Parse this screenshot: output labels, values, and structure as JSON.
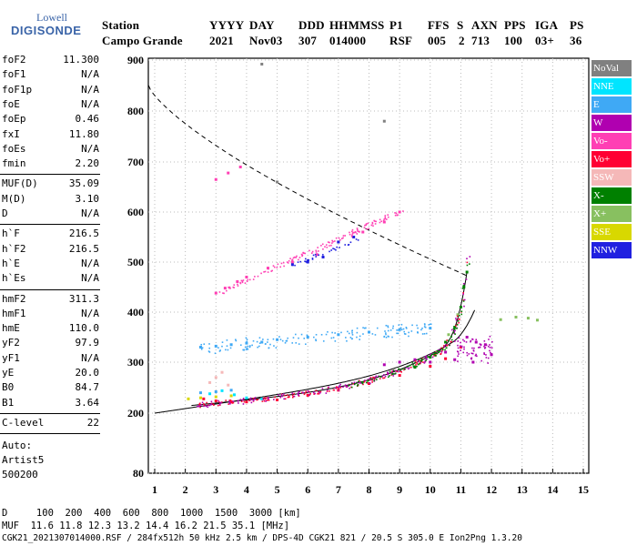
{
  "logo": {
    "line1": "Lowell",
    "line2": "DIGISONDE"
  },
  "header": {
    "row1": [
      "Station",
      "YYYY",
      "DAY",
      "DDD",
      "HHMMSS",
      "P1",
      "FFS",
      "S",
      "AXN",
      "PPS",
      "IGA",
      "PS"
    ],
    "row2": [
      "Campo Grande",
      "2021",
      "Nov03",
      "307",
      "014000",
      "RSF",
      "005",
      "2",
      "713",
      "100",
      "03+",
      "36"
    ]
  },
  "parameters": [
    {
      "name": "foF2",
      "value": "11.300"
    },
    {
      "name": "foF1",
      "value": "N/A"
    },
    {
      "name": "foF1p",
      "value": "N/A"
    },
    {
      "name": "foE",
      "value": "N/A"
    },
    {
      "name": "foEp",
      "value": "0.46"
    },
    {
      "name": "fxI",
      "value": "11.80"
    },
    {
      "name": "foEs",
      "value": "N/A"
    },
    {
      "name": "fmin",
      "value": "2.20"
    },
    {
      "name": "MUF(D)",
      "value": "35.09"
    },
    {
      "name": "M(D)",
      "value": "3.10"
    },
    {
      "name": "D",
      "value": "N/A"
    },
    {
      "name": "h`F",
      "value": "216.5"
    },
    {
      "name": "h`F2",
      "value": "216.5"
    },
    {
      "name": "h`E",
      "value": "N/A"
    },
    {
      "name": "h`Es",
      "value": "N/A"
    },
    {
      "name": "hmF2",
      "value": "311.3"
    },
    {
      "name": "hmF1",
      "value": "N/A"
    },
    {
      "name": "hmE",
      "value": "110.0"
    },
    {
      "name": "yF2",
      "value": "97.9"
    },
    {
      "name": "yF1",
      "value": "N/A"
    },
    {
      "name": "yE",
      "value": "20.0"
    },
    {
      "name": "B0",
      "value": "84.7"
    },
    {
      "name": "B1",
      "value": "3.64"
    },
    {
      "name": "C-level",
      "value": "22"
    }
  ],
  "autoscaler": {
    "line1": "Auto:",
    "line2": "Artist5",
    "line3": "500200"
  },
  "legend": [
    {
      "label": "NoVal",
      "color": "#808080"
    },
    {
      "label": "NNE",
      "color": "#00e5ff"
    },
    {
      "label": "E",
      "color": "#3fa9f5"
    },
    {
      "label": "W",
      "color": "#b000b0"
    },
    {
      "label": "Vo-",
      "color": "#ff3fb4"
    },
    {
      "label": "Vo+",
      "color": "#ff0033"
    },
    {
      "label": "SSW",
      "color": "#f5b8b8"
    },
    {
      "label": "X-",
      "color": "#008000"
    },
    {
      "label": "X+",
      "color": "#88c060"
    },
    {
      "label": "SSE",
      "color": "#d8d800"
    },
    {
      "label": "NNW",
      "color": "#2020e0"
    }
  ],
  "footer": {
    "line1": "D     100  200  400  600  800  1000  1500  3000 [km]",
    "line2": "MUF  11.6 11.8 12.3 13.2 14.4 16.2 21.5 35.1 [MHz]",
    "line3": "CGK21_2021307014000.RSF / 284fx512h 50 kHz 2.5 km / DPS-4D CGK21 821 / 20.5 S 305.0 E Ion2Png 1.3.20"
  },
  "chart_data": {
    "type": "scatter",
    "xlim": [
      0.5,
      15
    ],
    "ylim": [
      80,
      900
    ],
    "x_ticks": [
      1,
      2,
      3,
      4,
      5,
      6,
      7,
      8,
      9,
      10,
      11,
      12,
      13,
      14,
      15
    ],
    "y_ticks": [
      80,
      200,
      300,
      400,
      500,
      600,
      700,
      800,
      900
    ],
    "grid": true,
    "series": [
      {
        "name": "X-",
        "color": "#008000",
        "points": [
          [
            9.5,
            290
          ],
          [
            10.0,
            310
          ],
          [
            10.5,
            340
          ],
          [
            10.8,
            370
          ],
          [
            11.0,
            410
          ],
          [
            11.1,
            450
          ],
          [
            11.2,
            480
          ]
        ]
      },
      {
        "name": "X+",
        "color": "#88c060",
        "points": [
          [
            10.2,
            320
          ],
          [
            10.6,
            355
          ],
          [
            10.9,
            395
          ],
          [
            12.3,
            385
          ],
          [
            12.8,
            390
          ],
          [
            13.2,
            388
          ],
          [
            13.5,
            384
          ]
        ]
      },
      {
        "name": "W",
        "color": "#b000b0",
        "points": [
          [
            8.5,
            295
          ],
          [
            9.0,
            300
          ],
          [
            9.5,
            305
          ],
          [
            10.0,
            300
          ],
          [
            10.5,
            320
          ],
          [
            11.0,
            330
          ],
          [
            11.2,
            350
          ],
          [
            11.5,
            340
          ],
          [
            11.8,
            335
          ],
          [
            10.8,
            305
          ],
          [
            11.4,
            300
          ],
          [
            12.0,
            315
          ]
        ]
      },
      {
        "name": "Vo-",
        "color": "#ff3fb4",
        "points": [
          [
            3.0,
            438
          ],
          [
            3.3,
            448
          ],
          [
            3.7,
            461
          ],
          [
            4.0,
            470
          ],
          [
            4.7,
            488
          ],
          [
            5.5,
            500
          ],
          [
            6.3,
            515
          ],
          [
            7.0,
            540
          ],
          [
            7.8,
            560
          ],
          [
            8.5,
            580
          ],
          [
            9.0,
            600
          ],
          [
            3.0,
            665
          ],
          [
            3.4,
            678
          ],
          [
            3.8,
            690
          ]
        ]
      },
      {
        "name": "Vo+",
        "color": "#ff0033",
        "points": [
          [
            2.6,
            228
          ],
          [
            3.0,
            224
          ],
          [
            3.5,
            222
          ],
          [
            4.0,
            222
          ],
          [
            5.0,
            226
          ],
          [
            6.0,
            235
          ],
          [
            7.0,
            245
          ],
          [
            8.0,
            258
          ],
          [
            9.0,
            274
          ],
          [
            10.0,
            292
          ],
          [
            10.5,
            307
          ],
          [
            11.0,
            330
          ]
        ]
      },
      {
        "name": "E",
        "color": "#3fa9f5",
        "points": [
          [
            2.5,
            330
          ],
          [
            3.0,
            332
          ],
          [
            3.5,
            335
          ],
          [
            4.0,
            338
          ],
          [
            4.5,
            340
          ],
          [
            5.0,
            345
          ],
          [
            6.0,
            350
          ],
          [
            7.0,
            355
          ],
          [
            8.0,
            360
          ],
          [
            9.0,
            365
          ],
          [
            10.0,
            368
          ],
          [
            2.5,
            240
          ],
          [
            3.0,
            242
          ],
          [
            3.5,
            245
          ]
        ]
      },
      {
        "name": "NNE",
        "color": "#00e5ff",
        "points": [
          [
            2.8,
            238
          ],
          [
            3.2,
            244
          ],
          [
            3.6,
            236
          ],
          [
            4.0,
            230
          ],
          [
            4.5,
            228
          ]
        ]
      },
      {
        "name": "NNW",
        "color": "#2020e0",
        "points": [
          [
            5.5,
            495
          ],
          [
            6.0,
            500
          ],
          [
            6.5,
            510
          ],
          [
            7.0,
            540
          ],
          [
            7.5,
            550
          ]
        ]
      },
      {
        "name": "SSW",
        "color": "#f5b8b8",
        "points": [
          [
            2.8,
            260
          ],
          [
            3.0,
            270
          ],
          [
            3.2,
            280
          ],
          [
            3.4,
            255
          ]
        ]
      },
      {
        "name": "SSE",
        "color": "#d8d800",
        "points": [
          [
            2.1,
            228
          ],
          [
            2.5,
            230
          ],
          [
            3.0,
            232
          ],
          [
            3.5,
            234
          ]
        ]
      },
      {
        "name": "NoVal",
        "color": "#808080",
        "points": [
          [
            4.5,
            892
          ],
          [
            5.0,
            660
          ],
          [
            8.5,
            780
          ]
        ]
      }
    ]
  }
}
